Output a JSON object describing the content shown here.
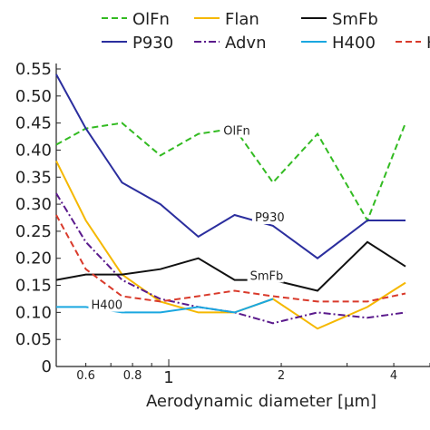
{
  "chart_data": {
    "type": "line",
    "xlabel": "Aerodynamic diameter [µm]",
    "ylabel": "",
    "x_scale": "log",
    "xlim": [
      0.5,
      5.0
    ],
    "ylim": [
      0,
      0.55
    ],
    "x_tick_labels": [
      {
        "value": 0.6,
        "label": "0.6",
        "major": false
      },
      {
        "value": 0.8,
        "label": "0.8",
        "major": false
      },
      {
        "value": 1,
        "label": "1",
        "major": true
      },
      {
        "value": 2,
        "label": "2",
        "major": false
      },
      {
        "value": 4,
        "label": "4",
        "major": false
      }
    ],
    "y_tick_labels": [
      "0",
      "0.05",
      "0.10",
      "0.15",
      "0.20",
      "0.25",
      "0.30",
      "0.35",
      "0.40",
      "0.45",
      "0.50",
      "0.55"
    ],
    "y_ticks": [
      0,
      0.05,
      0.1,
      0.15,
      0.2,
      0.25,
      0.3,
      0.35,
      0.4,
      0.45,
      0.5,
      0.55
    ],
    "grid": false,
    "legend_position": "top",
    "series": [
      {
        "name": "OlFn",
        "color": "#33bb22",
        "dash": "dashed",
        "x": [
          0.5,
          0.6,
          0.75,
          0.95,
          1.2,
          1.5,
          1.9,
          2.5,
          3.4,
          4.3
        ],
        "y": [
          0.41,
          0.44,
          0.45,
          0.39,
          0.43,
          0.44,
          0.34,
          0.43,
          0.27,
          0.45
        ],
        "inline_label": "OlFn",
        "label_at": [
          1.4,
          0.43
        ]
      },
      {
        "name": "P930",
        "color": "#2b2e9e",
        "dash": "solid",
        "x": [
          0.5,
          0.6,
          0.75,
          0.95,
          1.2,
          1.5,
          1.9,
          2.5,
          3.4,
          4.3
        ],
        "y": [
          0.54,
          0.44,
          0.34,
          0.3,
          0.24,
          0.28,
          0.26,
          0.2,
          0.27,
          0.27
        ],
        "inline_label": "P930",
        "label_at": [
          1.7,
          0.27
        ]
      },
      {
        "name": "Flan",
        "color": "#f5b800",
        "dash": "solid",
        "x": [
          0.5,
          0.6,
          0.75,
          0.95,
          1.2,
          1.5,
          1.9,
          2.5,
          3.4,
          4.3
        ],
        "y": [
          0.38,
          0.27,
          0.17,
          0.12,
          0.1,
          0.1,
          0.125,
          0.07,
          0.11,
          0.155
        ]
      },
      {
        "name": "Advn",
        "color": "#5a1a8c",
        "dash": "dashdot",
        "x": [
          0.5,
          0.6,
          0.75,
          0.95,
          1.2,
          1.5,
          1.9,
          2.5,
          3.4,
          4.3
        ],
        "y": [
          0.32,
          0.23,
          0.16,
          0.125,
          0.11,
          0.1,
          0.08,
          0.1,
          0.09,
          0.1
        ]
      },
      {
        "name": "SmFb",
        "color": "#111111",
        "dash": "solid",
        "x": [
          0.5,
          0.6,
          0.75,
          0.95,
          1.2,
          1.5,
          1.9,
          2.5,
          3.4,
          4.3
        ],
        "y": [
          0.16,
          0.17,
          0.17,
          0.18,
          0.2,
          0.16,
          0.16,
          0.14,
          0.23,
          0.185
        ],
        "inline_label": "SmFb",
        "label_at": [
          1.65,
          0.162
        ]
      },
      {
        "name": "H400",
        "color": "#1aa7e0",
        "dash": "solid",
        "x": [
          0.5,
          0.6,
          0.75,
          0.95,
          1.2,
          1.5,
          1.9
        ],
        "y": [
          0.11,
          0.11,
          0.1,
          0.1,
          0.11,
          0.1,
          0.125
        ],
        "inline_label": "H400",
        "label_at": [
          0.62,
          0.108
        ]
      },
      {
        "name": "H",
        "color": "#d93a2b",
        "dash": "dashed",
        "x": [
          0.5,
          0.6,
          0.75,
          0.95,
          1.2,
          1.5,
          1.9,
          2.5,
          3.4,
          4.3
        ],
        "y": [
          0.28,
          0.18,
          0.13,
          0.12,
          0.13,
          0.14,
          0.13,
          0.12,
          0.12,
          0.135
        ]
      }
    ]
  }
}
